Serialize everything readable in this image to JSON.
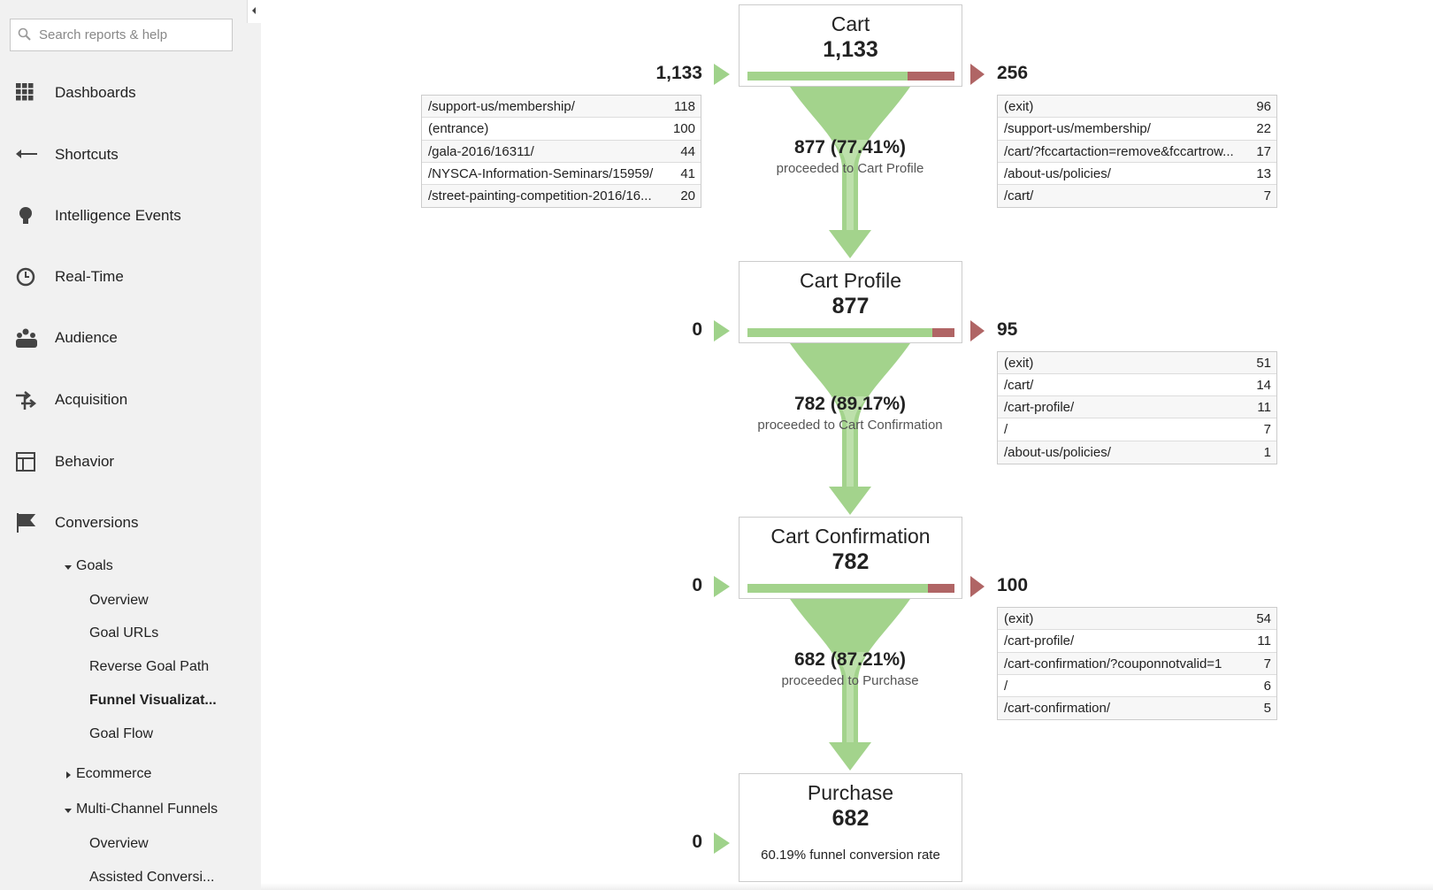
{
  "sidebar": {
    "search_placeholder": "Search reports & help",
    "nav": [
      "Dashboards",
      "Shortcuts",
      "Intelligence Events",
      "Real-Time",
      "Audience",
      "Acquisition",
      "Behavior",
      "Conversions"
    ],
    "goals": {
      "label": "Goals",
      "items": [
        "Overview",
        "Goal URLs",
        "Reverse Goal Path",
        "Funnel Visualizat...",
        "Goal Flow"
      ]
    },
    "ecommerce": "Ecommerce",
    "multi_channel": {
      "label": "Multi-Channel Funnels",
      "items": [
        "Overview",
        "Assisted Conversi..."
      ]
    }
  },
  "funnel": {
    "steps": [
      {
        "name": "Cart",
        "count": "1,133",
        "entrances": "1,133",
        "entrance_rows": [
          [
            "/support-us/membership/",
            "118"
          ],
          [
            "(entrance)",
            "100"
          ],
          [
            "/gala-2016/16311/",
            "44"
          ],
          [
            "/NYSCA-Information-Seminars/15959/",
            "41"
          ],
          [
            "/street-painting-competition-2016/16...",
            "20"
          ]
        ],
        "exits": "256",
        "exit_rows": [
          [
            "(exit)",
            "96"
          ],
          [
            "/support-us/membership/",
            "22"
          ],
          [
            "/cart/?fccartaction=remove&fccartrow...",
            "17"
          ],
          [
            "/about-us/policies/",
            "13"
          ],
          [
            "/cart/",
            "7"
          ]
        ],
        "proceeded": "877 (77.41%)",
        "proceeded_to": "proceeded to Cart Profile"
      },
      {
        "name": "Cart Profile",
        "count": "877",
        "entrances": "0",
        "entrance_rows": [],
        "exits": "95",
        "exit_rows": [
          [
            "(exit)",
            "51"
          ],
          [
            "/cart/",
            "14"
          ],
          [
            "/cart-profile/",
            "11"
          ],
          [
            "/",
            "7"
          ],
          [
            "/about-us/policies/",
            "1"
          ]
        ],
        "proceeded": "782 (89.17%)",
        "proceeded_to": "proceeded to Cart Confirmation"
      },
      {
        "name": "Cart Confirmation",
        "count": "782",
        "entrances": "0",
        "entrance_rows": [],
        "exits": "100",
        "exit_rows": [
          [
            "(exit)",
            "54"
          ],
          [
            "/cart-profile/",
            "11"
          ],
          [
            "/cart-confirmation/?couponnotvalid=1",
            "7"
          ],
          [
            "/",
            "6"
          ],
          [
            "/cart-confirmation/",
            "5"
          ]
        ],
        "proceeded": "682 (87.21%)",
        "proceeded_to": "proceeded to Purchase"
      },
      {
        "name": "Purchase",
        "count": "682",
        "entrances": "0",
        "entrance_rows": [],
        "conversion_rate": "60.19% funnel conversion rate"
      }
    ]
  }
}
